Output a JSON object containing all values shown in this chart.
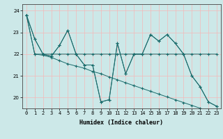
{
  "title": "",
  "xlabel": "Humidex (Indice chaleur)",
  "bg_color": "#cce8e8",
  "grid_color_major_h": "#f5b8b8",
  "grid_color_major_v": "#f5b8b8",
  "line_color": "#1a6b6b",
  "xlim": [
    -0.5,
    23.5
  ],
  "ylim": [
    19.5,
    24.3
  ],
  "yticks": [
    20,
    21,
    22,
    23,
    24
  ],
  "xticks": [
    0,
    1,
    2,
    3,
    4,
    5,
    6,
    7,
    8,
    9,
    10,
    11,
    12,
    13,
    14,
    15,
    16,
    17,
    18,
    19,
    20,
    21,
    22,
    23
  ],
  "series": [
    [
      23.8,
      22.7,
      22.0,
      21.9,
      22.4,
      23.1,
      22.0,
      21.5,
      21.5,
      19.8,
      19.9,
      22.5,
      21.1,
      22.0,
      22.0,
      22.9,
      22.6,
      22.9,
      22.5,
      22.0,
      21.0,
      20.5,
      19.8,
      19.6
    ],
    [
      23.8,
      22.0,
      22.0,
      22.0,
      22.0,
      22.0,
      22.0,
      22.0,
      22.0,
      22.0,
      22.0,
      22.0,
      22.0,
      22.0,
      22.0,
      22.0,
      22.0,
      22.0,
      22.0,
      22.0,
      22.0,
      22.0,
      22.0,
      22.0
    ],
    [
      23.8,
      22.0,
      21.95,
      21.85,
      21.7,
      21.55,
      21.45,
      21.35,
      21.2,
      21.1,
      20.95,
      20.82,
      20.68,
      20.55,
      20.42,
      20.29,
      20.16,
      20.03,
      19.9,
      19.77,
      19.64,
      19.51,
      19.38,
      19.25
    ],
    [
      23.8,
      22.7,
      22.0,
      21.9,
      22.4,
      23.1,
      22.0,
      21.5,
      21.5,
      19.8,
      19.9,
      22.5,
      21.1,
      22.0,
      22.0,
      22.9,
      22.6,
      22.9,
      22.5,
      22.0,
      21.0,
      20.5,
      19.8,
      19.6
    ]
  ]
}
